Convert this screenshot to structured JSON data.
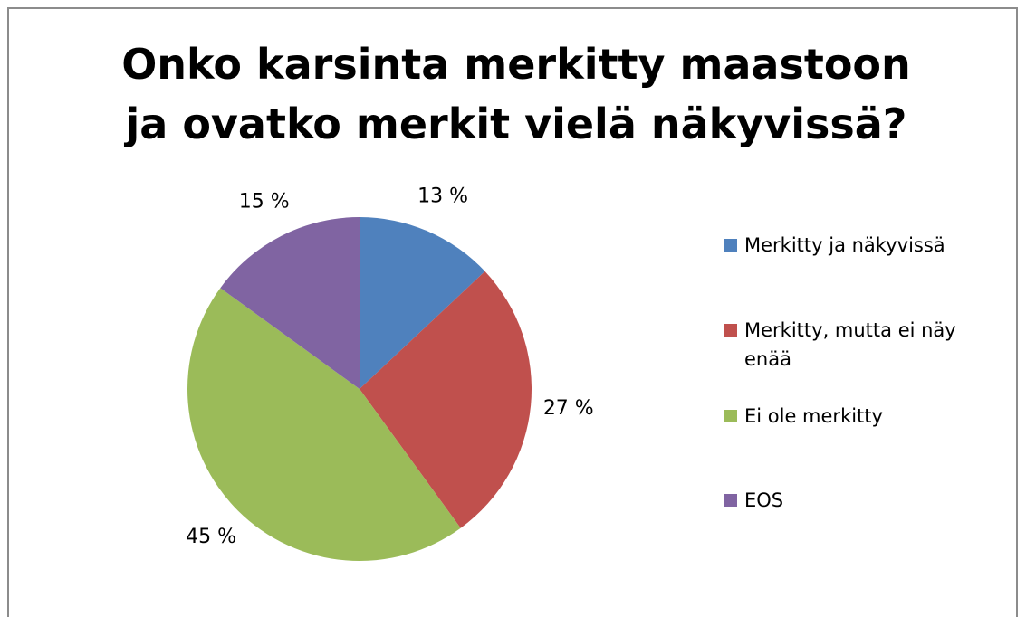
{
  "chart_data": {
    "type": "pie",
    "title": "Onko karsinta merkitty maastoon ja ovatko merkit vielä näkyvissä?",
    "categories": [
      "Merkitty ja näkyvissä",
      "Merkitty, mutta ei näy enää",
      "Ei ole merkitty",
      "EOS"
    ],
    "values": [
      13,
      27,
      45,
      15
    ],
    "value_labels": [
      "13 %",
      "27 %",
      "45 %",
      "15 %"
    ],
    "colors": [
      "#4f81bd",
      "#c0504d",
      "#9bbb59",
      "#8064a2"
    ],
    "legend": "right"
  }
}
